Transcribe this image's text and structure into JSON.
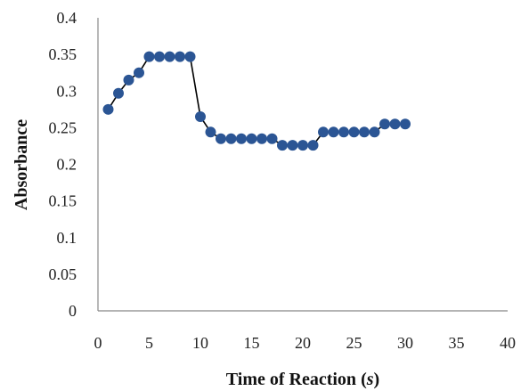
{
  "chart_data": {
    "type": "line",
    "title": "",
    "xlabel": "Time of Reaction (s)",
    "xlabel_main": "Time of Reaction ",
    "xlabel_unit": "s",
    "ylabel": "Absorbance",
    "xlim": [
      0,
      40
    ],
    "ylim": [
      0,
      0.4
    ],
    "x_ticks": [
      "0",
      "5",
      "10",
      "15",
      "20",
      "25",
      "30",
      "35",
      "40"
    ],
    "y_ticks": [
      "0",
      "0.05",
      "0.1",
      "0.15",
      "0.2",
      "0.25",
      "0.3",
      "0.35",
      "0.4"
    ],
    "grid": false,
    "legend": "none",
    "line_color": "#000000",
    "marker_color": "#2b5594",
    "series": [
      {
        "x": [
          1,
          2,
          3,
          4,
          5,
          6,
          7,
          8,
          9,
          10,
          11,
          12,
          13,
          14,
          15,
          16,
          17,
          18,
          19,
          20,
          21,
          22,
          23,
          24,
          25,
          26,
          27,
          28,
          29,
          30
        ],
        "values": [
          0.275,
          0.297,
          0.315,
          0.325,
          0.347,
          0.347,
          0.347,
          0.347,
          0.347,
          0.265,
          0.244,
          0.235,
          0.235,
          0.235,
          0.235,
          0.235,
          0.235,
          0.226,
          0.226,
          0.226,
          0.226,
          0.244,
          0.244,
          0.244,
          0.244,
          0.244,
          0.244,
          0.255,
          0.255,
          0.255
        ]
      }
    ]
  }
}
